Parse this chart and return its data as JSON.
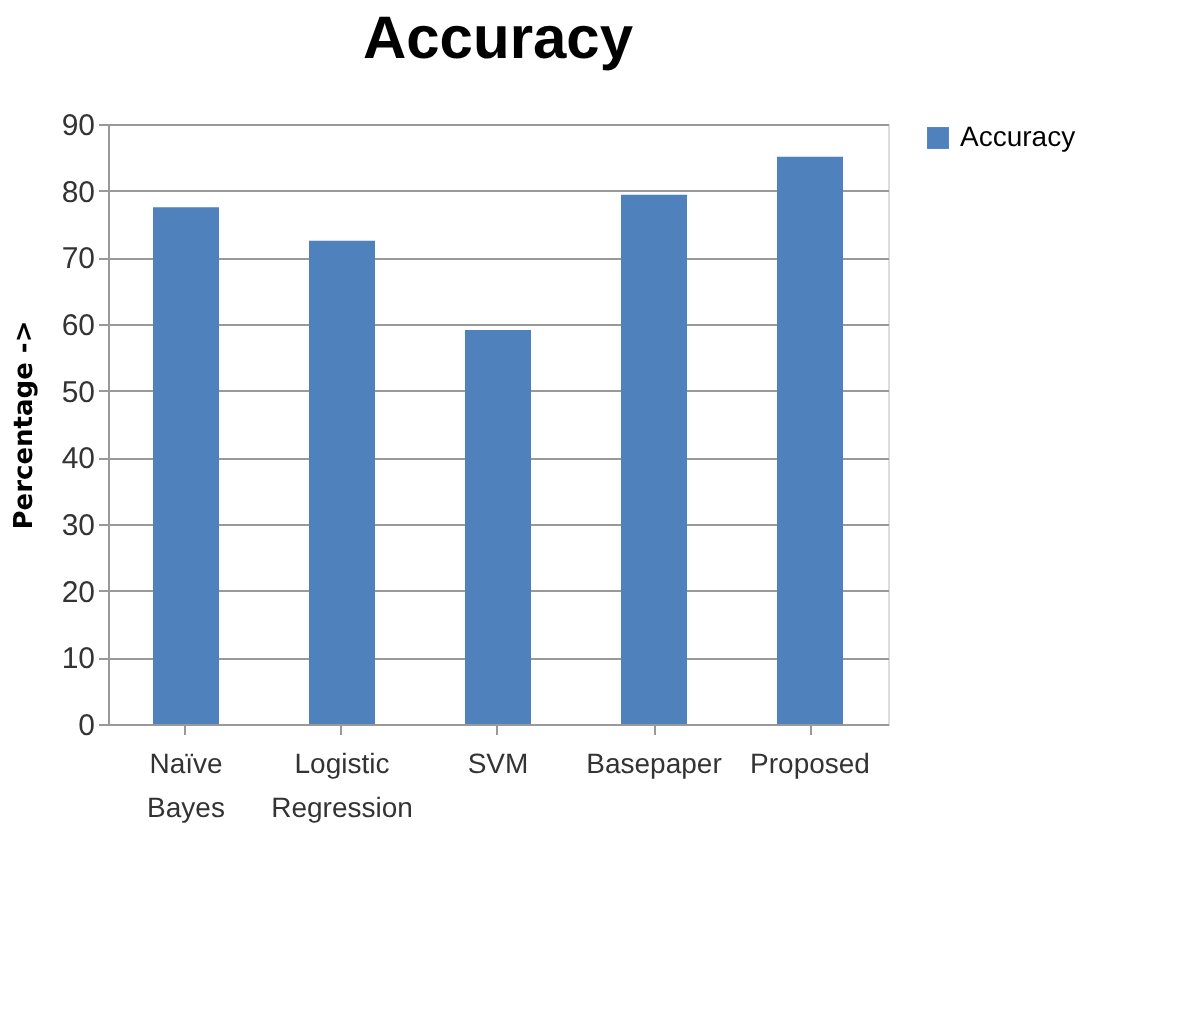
{
  "chart_data": {
    "type": "bar",
    "title": "Accuracy",
    "ylabel": "Percentage ->",
    "categories": [
      "Naïve Bayes",
      "Logistic Regression",
      "SVM",
      "Basepaper",
      "Proposed"
    ],
    "series": [
      {
        "name": "Accuracy",
        "color": "#4f81bd",
        "values": [
          77.5,
          72.5,
          59.1,
          79.4,
          85.1
        ]
      }
    ],
    "ylim": [
      0,
      90
    ],
    "yticks": [
      0,
      10,
      20,
      30,
      40,
      50,
      60,
      70,
      80,
      90
    ],
    "grid": "y",
    "legend": "right"
  }
}
